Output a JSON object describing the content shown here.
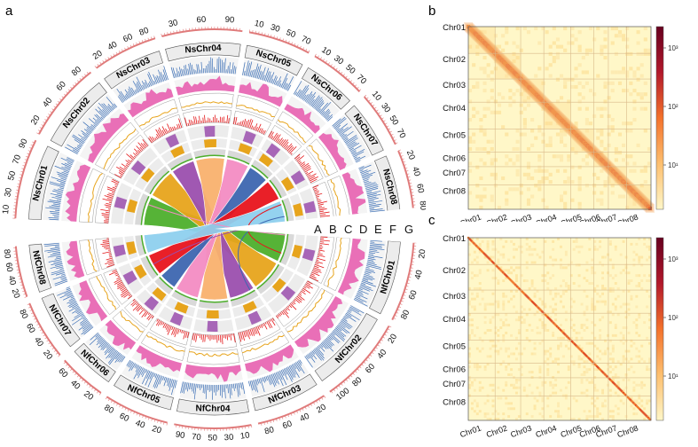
{
  "panels": {
    "a": {
      "label": "a"
    },
    "b": {
      "label": "b"
    },
    "c": {
      "label": "c"
    }
  },
  "circos": {
    "ns_chromosomes": [
      {
        "name": "NsChr01",
        "ticks": [
          "10",
          "30",
          "50",
          "70",
          "90"
        ],
        "color": "#4daf2c"
      },
      {
        "name": "NsChr02",
        "ticks": [
          "20",
          "40",
          "60",
          "80"
        ],
        "color": "#e7a41c"
      },
      {
        "name": "NsChr03",
        "ticks": [
          "20",
          "40",
          "60",
          "80"
        ],
        "color": "#9b4fae"
      },
      {
        "name": "NsChr04",
        "ticks": [
          "30",
          "60",
          "90"
        ],
        "color": "#f9b16e"
      },
      {
        "name": "NsChr05",
        "ticks": [
          "10",
          "30",
          "50",
          "70"
        ],
        "color": "#f38cc3"
      },
      {
        "name": "NsChr06",
        "ticks": [
          "10",
          "30",
          "50",
          "70"
        ],
        "color": "#3d66b0"
      },
      {
        "name": "NsChr07",
        "ticks": [
          "10",
          "30",
          "50",
          "70"
        ],
        "color": "#e8141c"
      },
      {
        "name": "NsChr08",
        "ticks": [
          "20",
          "40",
          "60",
          "80"
        ],
        "color": "#8ed0ee"
      }
    ],
    "nf_chromosomes": [
      {
        "name": "NfChr01",
        "ticks": [
          "20",
          "40",
          "60",
          "80"
        ]
      },
      {
        "name": "NfChr02",
        "ticks": [
          "20",
          "40",
          "60",
          "80",
          "100"
        ]
      },
      {
        "name": "NfChr03",
        "ticks": [
          "20",
          "40",
          "60",
          "80"
        ]
      },
      {
        "name": "NfChr04",
        "ticks": [
          "10",
          "30",
          "50",
          "70",
          "90"
        ]
      },
      {
        "name": "NfChr05",
        "ticks": [
          "20",
          "40",
          "60",
          "80"
        ]
      },
      {
        "name": "NfChr06",
        "ticks": [
          "20",
          "40",
          "60"
        ]
      },
      {
        "name": "NfChr07",
        "ticks": [
          "20",
          "40",
          "60",
          "80"
        ]
      },
      {
        "name": "NfChr08",
        "ticks": [
          "20",
          "40",
          "60",
          "80"
        ]
      }
    ],
    "track_labels": [
      "A",
      "B",
      "C",
      "D",
      "E",
      "F",
      "G"
    ],
    "track_colors": {
      "gene_density": "#3b6fb6",
      "pink_density": "#e96fb7",
      "orange_line": "#e7a41c",
      "red_bars": "#e31a1c",
      "purple_peaks": "#9b4fae",
      "yellow_peaks": "#e7a41c",
      "grey_ring": "#d9d9d9",
      "green_line": "#4daf2c"
    }
  },
  "heatmap_b": {
    "chromosomes": [
      "Chr01",
      "Chr02",
      "Chr03",
      "Chr04",
      "Chr05",
      "Chr06",
      "Chr07",
      "Chr08"
    ],
    "colorbar_ticks": [
      "10³",
      "10²",
      "10¹"
    ]
  },
  "heatmap_c": {
    "chromosomes": [
      "Chr01",
      "Chr02",
      "Chr03",
      "Chr04",
      "Chr05",
      "Chr06",
      "Chr07",
      "Chr08"
    ],
    "colorbar_ticks": [
      "10³",
      "10²",
      "10¹"
    ]
  }
}
